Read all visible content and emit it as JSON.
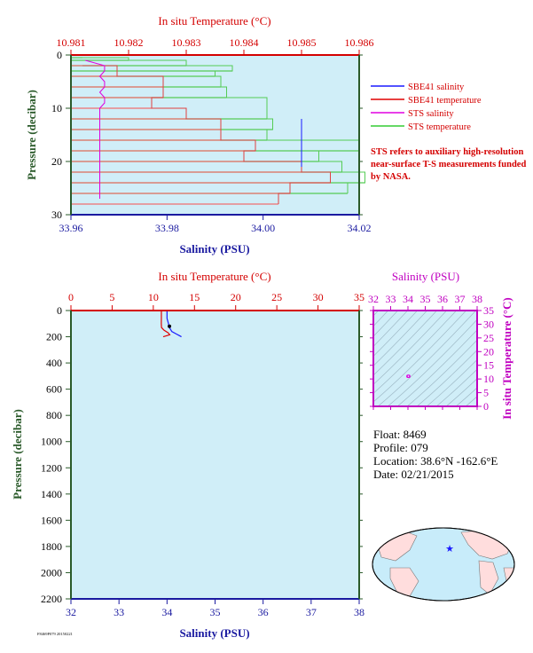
{
  "chart_data": [
    {
      "type": "line",
      "top_axis_label": "In situ Temperature (°C)",
      "top_ticks": [
        "10.981",
        "10.982",
        "10.983",
        "10.984",
        "10.985",
        "10.986"
      ],
      "temp_range": [
        10.981,
        10.986
      ],
      "ylabel": "Pressure (decibar)",
      "y_ticks": [
        "0",
        "10",
        "20",
        "30"
      ],
      "pressure_range": [
        0,
        30
      ],
      "xlabel": "Salinity (PSU)",
      "x_ticks": [
        "33.96",
        "33.98",
        "34.00",
        "34.02"
      ],
      "sal_range": [
        33.96,
        34.02
      ],
      "legend": [
        {
          "name": "SBE41 salinity",
          "color": "#1a1aff"
        },
        {
          "name": "SBE41 temperature",
          "color": "#e00000"
        },
        {
          "name": "STS salinity",
          "color": "#e000e0"
        },
        {
          "name": "STS temperature",
          "color": "#33cc33"
        }
      ],
      "sbe41_salinity": {
        "p": [
          12,
          13,
          14,
          15,
          16,
          17,
          18,
          19,
          20,
          21
        ],
        "s": [
          34.008,
          34.008,
          34.008,
          34.008,
          34.008,
          34.008,
          34.008,
          34.008,
          34.008,
          34.008
        ]
      },
      "sbe41_temperature": {
        "p": [
          2,
          4,
          6,
          8,
          10,
          12,
          14,
          16,
          18,
          20,
          22,
          24,
          26,
          28
        ],
        "t": [
          10.9812,
          10.9818,
          10.9826,
          10.9826,
          10.9824,
          10.983,
          10.9836,
          10.9836,
          10.9842,
          10.984,
          10.985,
          10.9855,
          10.9848,
          10.9846
        ]
      },
      "sts_salinity": {
        "p": [
          1,
          2,
          3,
          4,
          5,
          6,
          7,
          8,
          9,
          10,
          12,
          14,
          16,
          18,
          20,
          22,
          24,
          26,
          27
        ],
        "s": [
          33.963,
          33.967,
          33.967,
          33.966,
          33.967,
          33.967,
          33.966,
          33.967,
          33.967,
          33.966,
          33.966,
          33.966,
          33.966,
          33.966,
          33.966,
          33.966,
          33.966,
          33.966,
          33.966
        ]
      },
      "sts_temperature": {
        "p": [
          0.5,
          1,
          2,
          3,
          4,
          6,
          8,
          12,
          14,
          16,
          18,
          20,
          22,
          24,
          26
        ],
        "t": [
          10.9812,
          10.982,
          10.983,
          10.9838,
          10.9835,
          10.9836,
          10.9837,
          10.9844,
          10.9845,
          10.9844,
          10.986,
          10.9853,
          10.9857,
          10.9861,
          10.9858
        ]
      }
    },
    {
      "type": "line",
      "top_axis_label": "In situ Temperature (°C)",
      "top_ticks": [
        "0",
        "5",
        "10",
        "15",
        "20",
        "25",
        "30",
        "35"
      ],
      "temp_range": [
        0,
        35
      ],
      "ylabel": "Pressure (decibar)",
      "y_ticks": [
        "0",
        "200",
        "400",
        "600",
        "800",
        "1000",
        "1200",
        "1400",
        "1600",
        "1800",
        "2000",
        "2200"
      ],
      "pressure_range": [
        0,
        2200
      ],
      "xlabel": "Salinity (PSU)",
      "x_ticks": [
        "32",
        "33",
        "34",
        "35",
        "36",
        "37",
        "38"
      ],
      "sal_range": [
        32,
        38
      ],
      "salinity_profile": {
        "p": [
          0,
          30,
          60,
          100,
          130,
          160,
          180,
          190,
          200
        ],
        "s": [
          34.0,
          34.0,
          34.0,
          34.03,
          34.05,
          34.1,
          34.2,
          34.25,
          34.3
        ]
      },
      "temperature_profile": {
        "p": [
          0,
          30,
          60,
          100,
          130,
          150,
          170,
          185,
          200
        ],
        "t": [
          10.98,
          10.98,
          10.98,
          10.97,
          11.0,
          11.3,
          11.8,
          12.0,
          11.2
        ]
      }
    },
    {
      "type": "scatter",
      "top_axis_label": "Salinity (PSU)",
      "top_ticks": [
        "32",
        "33",
        "34",
        "35",
        "36",
        "37",
        "38"
      ],
      "right_axis_label": "In situ Temperature (°C)",
      "right_ticks": [
        "0",
        "5",
        "10",
        "15",
        "20",
        "25",
        "30",
        "35"
      ],
      "points": [
        {
          "s": 34.0,
          "t": 10.98
        },
        {
          "s": 34.05,
          "t": 10.97
        }
      ]
    }
  ],
  "float_info": {
    "float": "Float:  8469",
    "profile": "Profile:  079",
    "location": "Location:  38.6°N  -162.6°E",
    "date": "Date:  02/21/2015"
  },
  "note": "STS refers to auxiliary high-resolution near-surface T-S measurements funded by NASA.",
  "footer_code": "F8469P079 20150221",
  "colors": {
    "background": "#d0eef8",
    "red_axis": "#d40000",
    "blue_axis": "#1a1aa0",
    "green_axis": "#2a5a2a",
    "magenta_axis": "#c000c0"
  }
}
